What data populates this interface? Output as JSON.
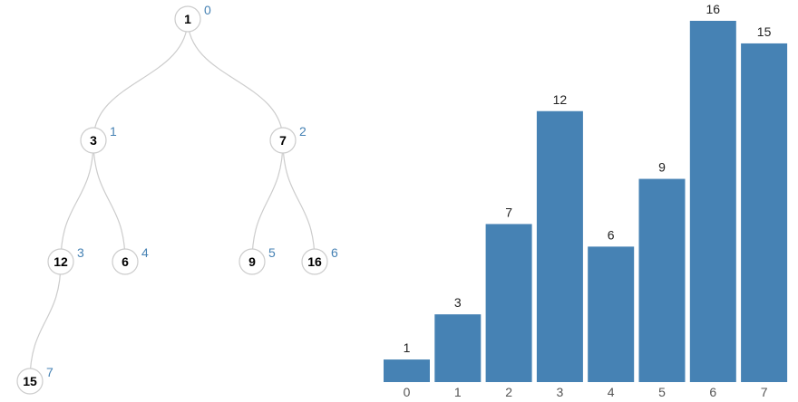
{
  "tree": {
    "nodes": [
      {
        "index": "0",
        "value": "1"
      },
      {
        "index": "1",
        "value": "3"
      },
      {
        "index": "2",
        "value": "7"
      },
      {
        "index": "3",
        "value": "12"
      },
      {
        "index": "4",
        "value": "6"
      },
      {
        "index": "5",
        "value": "9"
      },
      {
        "index": "6",
        "value": "16"
      },
      {
        "index": "7",
        "value": "15"
      }
    ],
    "edges": [
      [
        0,
        1
      ],
      [
        0,
        2
      ],
      [
        1,
        3
      ],
      [
        1,
        4
      ],
      [
        2,
        5
      ],
      [
        2,
        6
      ],
      [
        3,
        7
      ]
    ]
  },
  "chart_data": {
    "type": "bar",
    "categories": [
      "0",
      "1",
      "2",
      "3",
      "4",
      "5",
      "6",
      "7"
    ],
    "values": [
      1,
      3,
      7,
      12,
      6,
      9,
      16,
      15
    ],
    "title": "",
    "xlabel": "",
    "ylabel": "",
    "ylim": [
      0,
      16
    ],
    "bar_color": "#4682b4"
  },
  "colors": {
    "edge": "#cccccc",
    "index_label": "#4682b4",
    "bar": "#4682b4"
  }
}
